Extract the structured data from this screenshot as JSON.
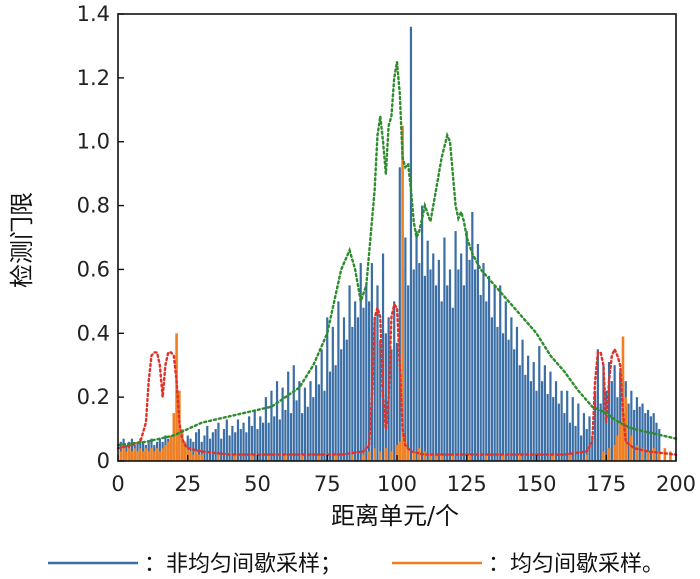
{
  "chart_data": {
    "type": "bar",
    "xlabel": "距离单元/个",
    "ylabel": "检测门限",
    "xlim": [
      0,
      200
    ],
    "ylim": [
      0,
      1.4
    ],
    "x_ticks": [
      0,
      25,
      50,
      75,
      100,
      125,
      150,
      175,
      200
    ],
    "y_ticks": [
      0,
      0.2,
      0.4,
      0.6,
      0.8,
      1.0,
      1.2,
      1.4
    ],
    "y_tick_labels": [
      "0",
      "0.2",
      "0.4",
      "0.6",
      "0.8",
      "1.0",
      "1.2",
      "1.4"
    ],
    "grid": false,
    "legend_position": "bottom",
    "colors": {
      "non_uniform": "#3a6ea5",
      "uniform": "#f07f22",
      "red_dotted": "#e0322a",
      "green_dotted": "#2e8b2e"
    },
    "legend": [
      {
        "label": "：非均匀间歇采样；",
        "color": "#3a6ea5"
      },
      {
        "label": "：均匀间歇采样。",
        "color": "#f07f22"
      }
    ],
    "series": [
      {
        "id": "non_uniform",
        "style": "bars",
        "x_start": 1,
        "x_step": 1,
        "values": [
          0.06,
          0.07,
          0.05,
          0.06,
          0.07,
          0.05,
          0.06,
          0.07,
          0.06,
          0.05,
          0.06,
          0.07,
          0.05,
          0.06,
          0.07,
          0.06,
          0.08,
          0.07,
          0.06,
          0.05,
          0.06,
          0.1,
          0.07,
          0.06,
          0.08,
          0.07,
          0.06,
          0.09,
          0.1,
          0.06,
          0.08,
          0.11,
          0.07,
          0.09,
          0.1,
          0.12,
          0.07,
          0.1,
          0.13,
          0.08,
          0.11,
          0.09,
          0.13,
          0.1,
          0.12,
          0.09,
          0.14,
          0.11,
          0.16,
          0.1,
          0.14,
          0.12,
          0.2,
          0.12,
          0.22,
          0.14,
          0.25,
          0.13,
          0.23,
          0.16,
          0.28,
          0.15,
          0.3,
          0.19,
          0.25,
          0.15,
          0.23,
          0.17,
          0.25,
          0.2,
          0.3,
          0.24,
          0.35,
          0.22,
          0.45,
          0.28,
          0.42,
          0.3,
          0.5,
          0.35,
          0.45,
          0.38,
          0.55,
          0.42,
          0.5,
          0.45,
          0.62,
          0.48,
          0.55,
          0.5,
          0.62,
          0.45,
          0.55,
          0.38,
          0.65,
          0.4,
          0.45,
          0.35,
          0.5,
          0.37,
          0.92,
          0.6,
          0.7,
          0.55,
          1.36,
          0.6,
          0.72,
          0.62,
          0.8,
          0.58,
          0.69,
          0.6,
          0.65,
          0.55,
          0.63,
          0.5,
          0.7,
          0.55,
          0.6,
          0.48,
          0.72,
          0.6,
          0.65,
          0.55,
          0.72,
          0.63,
          0.78,
          0.6,
          0.68,
          0.52,
          0.62,
          0.5,
          0.58,
          0.45,
          0.55,
          0.42,
          0.55,
          0.4,
          0.5,
          0.38,
          0.45,
          0.35,
          0.42,
          0.3,
          0.38,
          0.27,
          0.33,
          0.25,
          0.31,
          0.22,
          0.36,
          0.25,
          0.3,
          0.21,
          0.28,
          0.2,
          0.25,
          0.18,
          0.22,
          0.15,
          0.22,
          0.12,
          0.2,
          0.11,
          0.18,
          0.08,
          0.15,
          0.1,
          0.14,
          0.08,
          0.22,
          0.35,
          0.18,
          0.3,
          0.22,
          0.31,
          0.25,
          0.3,
          0.2,
          0.28,
          0.15,
          0.25,
          0.18,
          0.22,
          0.16,
          0.2,
          0.17,
          0.18,
          0.15,
          0.16,
          0.14,
          0.15,
          0.12,
          0.1
        ]
      },
      {
        "id": "uniform",
        "style": "bars",
        "x": [
          1,
          2,
          3,
          4,
          5,
          6,
          7,
          8,
          9,
          10,
          11,
          12,
          13,
          14,
          15,
          16,
          17,
          18,
          19,
          20,
          21,
          22,
          23,
          24,
          25,
          26,
          27,
          28,
          29,
          30,
          36,
          42,
          48,
          54,
          60,
          66,
          72,
          78,
          84,
          88,
          90,
          92,
          94,
          96,
          98,
          100,
          101,
          102,
          103,
          104,
          106,
          108,
          110,
          112,
          114,
          116,
          120,
          126,
          132,
          138,
          144,
          150,
          156,
          162,
          168,
          174,
          176,
          178,
          179,
          180,
          181,
          182,
          184,
          186,
          188,
          190,
          192,
          194,
          196,
          198
        ],
        "values": [
          0.03,
          0.04,
          0.03,
          0.04,
          0.03,
          0.04,
          0.03,
          0.04,
          0.03,
          0.04,
          0.03,
          0.04,
          0.03,
          0.04,
          0.03,
          0.04,
          0.05,
          0.06,
          0.08,
          0.15,
          0.4,
          0.22,
          0.1,
          0.06,
          0.04,
          0.03,
          0.02,
          0.03,
          0.02,
          0.02,
          0.02,
          0.02,
          0.02,
          0.02,
          0.02,
          0.02,
          0.02,
          0.02,
          0.02,
          0.02,
          0.03,
          0.04,
          0.03,
          0.04,
          0.03,
          0.05,
          0.06,
          1.05,
          0.06,
          0.04,
          0.03,
          0.04,
          0.03,
          0.02,
          0.02,
          0.02,
          0.02,
          0.02,
          0.02,
          0.02,
          0.02,
          0.02,
          0.02,
          0.02,
          0.02,
          0.03,
          0.04,
          0.05,
          0.08,
          0.12,
          0.39,
          0.2,
          0.08,
          0.05,
          0.04,
          0.03,
          0.04,
          0.03,
          0.04,
          0.03
        ]
      },
      {
        "id": "red_dotted",
        "style": "dotted-line",
        "x": [
          0,
          5,
          8,
          10,
          11,
          12,
          13,
          14,
          15,
          16,
          17,
          18,
          19,
          20,
          21,
          22,
          23,
          24,
          25,
          30,
          40,
          60,
          80,
          88,
          90,
          91,
          92,
          93,
          94,
          95,
          96,
          97,
          98,
          99,
          100,
          101,
          102,
          103,
          104,
          105,
          110,
          120,
          140,
          160,
          168,
          170,
          171,
          172,
          173,
          174,
          175,
          176,
          177,
          178,
          179,
          180,
          181,
          182,
          185,
          190,
          200
        ],
        "values": [
          0.04,
          0.05,
          0.06,
          0.12,
          0.25,
          0.33,
          0.34,
          0.34,
          0.3,
          0.2,
          0.3,
          0.34,
          0.34,
          0.33,
          0.25,
          0.12,
          0.07,
          0.05,
          0.04,
          0.03,
          0.02,
          0.02,
          0.02,
          0.03,
          0.05,
          0.2,
          0.45,
          0.48,
          0.45,
          0.2,
          0.1,
          0.2,
          0.45,
          0.49,
          0.48,
          0.3,
          0.1,
          0.05,
          0.04,
          0.03,
          0.02,
          0.02,
          0.02,
          0.02,
          0.03,
          0.06,
          0.25,
          0.34,
          0.34,
          0.3,
          0.12,
          0.25,
          0.33,
          0.35,
          0.33,
          0.3,
          0.15,
          0.06,
          0.04,
          0.03,
          0.02
        ]
      },
      {
        "id": "green_dotted",
        "style": "dotted-line",
        "x": [
          0,
          10,
          20,
          25,
          30,
          40,
          50,
          55,
          60,
          65,
          70,
          75,
          78,
          80,
          83,
          85,
          87,
          89,
          90,
          92,
          93,
          94,
          95,
          96,
          97,
          98,
          99,
          100,
          101,
          102,
          103,
          104,
          105,
          106,
          107,
          108,
          110,
          112,
          114,
          116,
          118,
          119,
          120,
          121,
          122,
          123,
          124,
          125,
          127,
          130,
          135,
          140,
          145,
          150,
          155,
          160,
          165,
          170,
          175,
          178,
          180,
          182,
          185,
          190,
          195,
          200
        ],
        "values": [
          0.05,
          0.06,
          0.08,
          0.1,
          0.12,
          0.14,
          0.16,
          0.17,
          0.2,
          0.23,
          0.3,
          0.4,
          0.52,
          0.6,
          0.66,
          0.6,
          0.5,
          0.55,
          0.65,
          0.85,
          1.02,
          1.08,
          1.0,
          0.9,
          1.05,
          1.08,
          1.2,
          1.25,
          1.15,
          0.95,
          0.92,
          0.93,
          0.85,
          0.75,
          0.7,
          0.72,
          0.8,
          0.75,
          0.85,
          0.95,
          1.02,
          1.0,
          0.9,
          0.8,
          0.76,
          0.78,
          0.75,
          0.7,
          0.65,
          0.6,
          0.55,
          0.5,
          0.45,
          0.4,
          0.33,
          0.28,
          0.22,
          0.17,
          0.15,
          0.13,
          0.12,
          0.11,
          0.1,
          0.09,
          0.08,
          0.07
        ]
      }
    ]
  }
}
